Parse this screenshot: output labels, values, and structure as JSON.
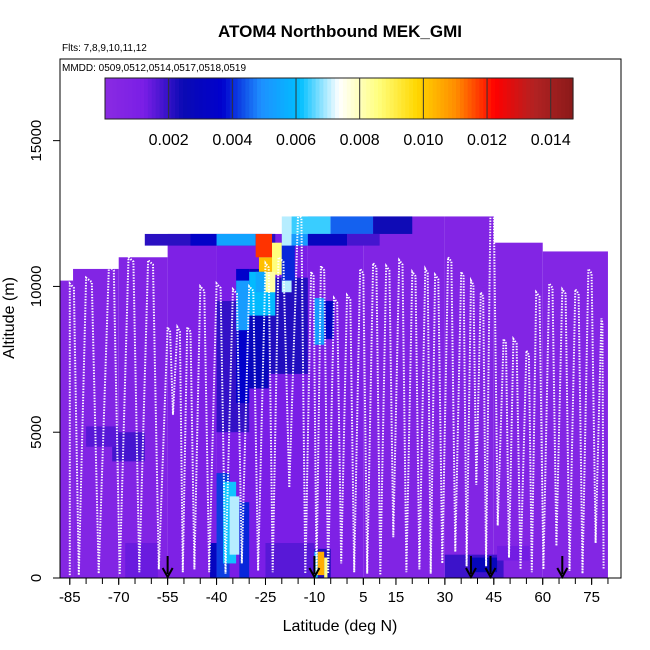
{
  "chart_data": {
    "type": "heatmap",
    "title": "ATOM4 Northbound MEK_GMI",
    "flights_note": "Flts: 7,8,9,10,11,12",
    "dates_note": "MMDD: 0509,0512,0514,0517,0518,0519",
    "xlabel": "Latitude (deg N)",
    "ylabel": "Altitude (m)",
    "xlim": [
      -88,
      84
    ],
    "ylim": [
      0,
      17800
    ],
    "x_ticks": [
      -85,
      -70,
      -55,
      -40,
      -25,
      -10,
      5,
      15,
      30,
      45,
      60,
      75
    ],
    "y_ticks": [
      0,
      5000,
      10000,
      15000
    ],
    "colorbar": {
      "min": 0,
      "max": 0.0147,
      "ticks": [
        "0.002",
        "0.004",
        "0.006",
        "0.008",
        "0.010",
        "0.012",
        "0.014"
      ],
      "colors": [
        "#8a2be2",
        "#7a1ee6",
        "#0a0ab4",
        "#0000cd",
        "#1e90ff",
        "#00bfff",
        "#ffffff",
        "#ffff7f",
        "#ffd700",
        "#ff8c00",
        "#ff0000",
        "#b22222",
        "#8b1a1a"
      ]
    },
    "arrows_at_lat": [
      -55,
      -10,
      38,
      44,
      66
    ],
    "bands": [
      {
        "lat": [
          -88,
          -84
        ],
        "alt": [
          0,
          10200
        ],
        "v": 0.0004
      },
      {
        "lat": [
          -84,
          -70
        ],
        "alt": [
          0,
          10600
        ],
        "v": 0.0006
      },
      {
        "lat": [
          -70,
          -55
        ],
        "alt": [
          0,
          11000
        ],
        "v": 0.0007
      },
      {
        "lat": [
          -55,
          -40
        ],
        "alt": [
          0,
          11800
        ],
        "v": 0.0009
      },
      {
        "lat": [
          -40,
          -12
        ],
        "alt": [
          0,
          11800
        ],
        "v": 0.0012
      },
      {
        "lat": [
          -12,
          5
        ],
        "alt": [
          0,
          12400
        ],
        "v": 0.0009
      },
      {
        "lat": [
          5,
          30
        ],
        "alt": [
          0,
          12400
        ],
        "v": 0.0007
      },
      {
        "lat": [
          30,
          45
        ],
        "alt": [
          0,
          12400
        ],
        "v": 0.0006
      },
      {
        "lat": [
          45,
          60
        ],
        "alt": [
          0,
          11500
        ],
        "v": 0.0006
      },
      {
        "lat": [
          60,
          80
        ],
        "alt": [
          0,
          11200
        ],
        "v": 0.0005
      }
    ],
    "cells": [
      {
        "lat": [
          -72,
          -62
        ],
        "alt": [
          4000,
          5000
        ],
        "v": 0.0018
      },
      {
        "lat": [
          -80,
          -70
        ],
        "alt": [
          4500,
          5200
        ],
        "v": 0.0016
      },
      {
        "lat": [
          -68,
          -58
        ],
        "alt": [
          0,
          1200
        ],
        "v": 0.0014
      },
      {
        "lat": [
          -40,
          -30
        ],
        "alt": [
          5000,
          9500
        ],
        "v": 0.002
      },
      {
        "lat": [
          -34,
          -30
        ],
        "alt": [
          6000,
          10600
        ],
        "v": 0.0036
      },
      {
        "lat": [
          -30,
          -24
        ],
        "alt": [
          6500,
          10600
        ],
        "v": 0.0028
      },
      {
        "lat": [
          -24,
          -12
        ],
        "alt": [
          7000,
          10300
        ],
        "v": 0.0022
      },
      {
        "lat": [
          -34,
          -30
        ],
        "alt": [
          8500,
          10200
        ],
        "v": 0.0052
      },
      {
        "lat": [
          -30,
          -22
        ],
        "alt": [
          9000,
          10500
        ],
        "v": 0.006
      },
      {
        "lat": [
          -42,
          -40
        ],
        "alt": [
          0,
          1200
        ],
        "v": 0.003
      },
      {
        "lat": [
          -40,
          -36
        ],
        "alt": [
          0,
          3600
        ],
        "v": 0.0042
      },
      {
        "lat": [
          -38,
          -34
        ],
        "alt": [
          500,
          3300
        ],
        "v": 0.0062
      },
      {
        "lat": [
          -36,
          -33
        ],
        "alt": [
          800,
          2800
        ],
        "v": 0.007
      },
      {
        "lat": [
          -33,
          -30
        ],
        "alt": [
          0,
          2600
        ],
        "v": 0.004
      },
      {
        "lat": [
          -12,
          -5
        ],
        "alt": [
          0,
          1000
        ],
        "v": 0.0022
      },
      {
        "lat": [
          -12,
          -9
        ],
        "alt": [
          0,
          900
        ],
        "v": 0.0062
      },
      {
        "lat": [
          -9,
          -7
        ],
        "alt": [
          100,
          900
        ],
        "v": 0.0105
      },
      {
        "lat": [
          -7,
          -6
        ],
        "alt": [
          0,
          700
        ],
        "v": 0.0085
      },
      {
        "lat": [
          -10,
          -7
        ],
        "alt": [
          8000,
          9600
        ],
        "v": 0.0052
      },
      {
        "lat": [
          -7,
          -4
        ],
        "alt": [
          8200,
          9500
        ],
        "v": 0.0032
      },
      {
        "lat": [
          -25,
          -10
        ],
        "alt": [
          0,
          1200
        ],
        "v": 0.0016
      },
      {
        "lat": [
          30,
          48
        ],
        "alt": [
          0,
          800
        ],
        "v": 0.0019
      },
      {
        "lat": [
          38,
          46
        ],
        "alt": [
          200,
          700
        ],
        "v": 0.0028
      },
      {
        "lat": [
          46,
          56
        ],
        "alt": [
          600,
          1100
        ],
        "v": 0.0013
      },
      {
        "lat": [
          -62,
          -22
        ],
        "alt": [
          11400,
          11800
        ],
        "v": 0.0021
      },
      {
        "lat": [
          -48,
          -40
        ],
        "alt": [
          11400,
          11800
        ],
        "v": 0.0034
      },
      {
        "lat": [
          -40,
          -28
        ],
        "alt": [
          11400,
          11800
        ],
        "v": 0.0054
      },
      {
        "lat": [
          -28,
          -23
        ],
        "alt": [
          11000,
          11800
        ],
        "v": 0.0118
      },
      {
        "lat": [
          -27,
          -23
        ],
        "alt": [
          10500,
          11000
        ],
        "v": 0.0102
      },
      {
        "lat": [
          -23,
          -20
        ],
        "alt": [
          10400,
          11500
        ],
        "v": 0.0086
      },
      {
        "lat": [
          -25,
          -22
        ],
        "alt": [
          9800,
          10500
        ],
        "v": 0.0082
      },
      {
        "lat": [
          -20,
          -17
        ],
        "alt": [
          9800,
          12400
        ],
        "v": 0.007
      },
      {
        "lat": [
          -28,
          -25
        ],
        "alt": [
          9800,
          10500
        ],
        "v": 0.0055
      },
      {
        "lat": [
          -17,
          -5
        ],
        "alt": [
          11800,
          12400
        ],
        "v": 0.0064
      },
      {
        "lat": [
          -5,
          8
        ],
        "alt": [
          11800,
          12400
        ],
        "v": 0.0045
      },
      {
        "lat": [
          8,
          20
        ],
        "alt": [
          11800,
          12400
        ],
        "v": 0.0024
      },
      {
        "lat": [
          -17,
          -12
        ],
        "alt": [
          11400,
          11800
        ],
        "v": 0.0052
      },
      {
        "lat": [
          -12,
          0
        ],
        "alt": [
          11400,
          11800
        ],
        "v": 0.003
      },
      {
        "lat": [
          0,
          10
        ],
        "alt": [
          11400,
          11800
        ],
        "v": 0.0018
      },
      {
        "lat": [
          -20,
          -16
        ],
        "alt": [
          10200,
          11400
        ],
        "v": 0.004
      }
    ],
    "profile_lats": [
      -85,
      -80,
      -73,
      -67,
      -61,
      -55,
      -52,
      -49,
      -45,
      -40,
      -35,
      -30,
      -25,
      -21,
      -15,
      -11,
      -8,
      -4,
      0,
      4,
      8,
      12,
      16,
      20,
      24,
      27,
      31,
      35,
      38,
      41,
      44,
      48,
      51,
      55,
      58,
      62,
      66,
      70,
      74,
      78
    ],
    "profile_tops": [
      10100,
      10300,
      10700,
      11000,
      10900,
      8600,
      8600,
      8600,
      10000,
      10100,
      9900,
      10000,
      10800,
      11000,
      12500,
      10500,
      10700,
      9600,
      9700,
      10600,
      10800,
      10700,
      10900,
      10500,
      10600,
      10400,
      11000,
      10500,
      10200,
      9800,
      12700,
      8200,
      8200,
      7800,
      9800,
      10100,
      9900,
      9900,
      10600,
      8900
    ],
    "profile_bottoms": [
      100,
      150,
      120,
      200,
      300,
      5600,
      200,
      300,
      200,
      150,
      500,
      250,
      200,
      3100,
      150,
      100,
      150,
      500,
      200,
      150,
      100,
      1400,
      200,
      300,
      150,
      500,
      900,
      400,
      3200,
      400,
      1800,
      700,
      300,
      200,
      300,
      1100,
      250,
      150,
      1200,
      300
    ]
  }
}
